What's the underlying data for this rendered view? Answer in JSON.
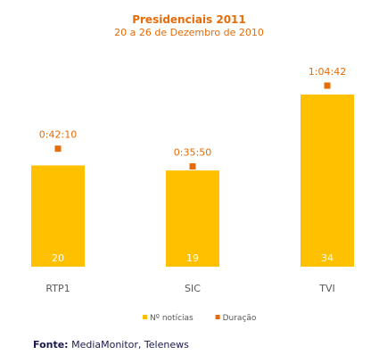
{
  "chart_data": {
    "type": "bar",
    "title": "Presidenciais 2011",
    "subtitle": "20 a 26 de Dezembro de 2010",
    "categories": [
      "RTP1",
      "SIC",
      "TVI"
    ],
    "series": [
      {
        "name": "Nº notícias",
        "values": [
          20,
          19,
          34
        ],
        "color": "#FFC000",
        "kind": "bar"
      },
      {
        "name": "Duração",
        "values": [
          "0:42:10",
          "0:35:50",
          "1:04:42"
        ],
        "color": "#E46C0A",
        "kind": "marker"
      }
    ],
    "legend": "bottom"
  },
  "source": {
    "label": "Fonte:",
    "text": "MediaMonitor, Telenews"
  },
  "colors": {
    "title": "#E46C0A",
    "bar": "#FFC000",
    "marker": "#E46C0A",
    "text_dark": "#595959",
    "bar_label": "#ffffff"
  }
}
